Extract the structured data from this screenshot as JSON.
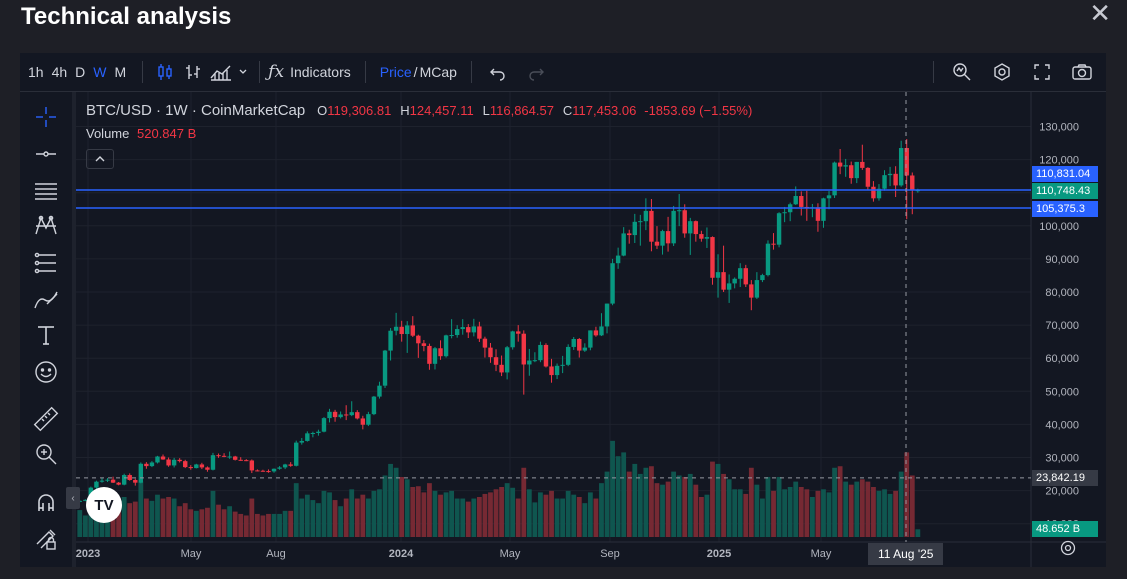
{
  "dialog": {
    "title": "Technical analysis"
  },
  "toolbar": {
    "intervals": [
      "1h",
      "4h",
      "D",
      "W",
      "M"
    ],
    "active_interval": "W",
    "indicators_label": "Indicators",
    "price_label": "Price",
    "mcap_label": "MCap",
    "slash": "/"
  },
  "legend": {
    "symbol": "BTC/USD · 1W · CoinMarketCap",
    "o_label": "O",
    "open": "119,306.81",
    "h_label": "H",
    "high": "124,457.11",
    "l_label": "L",
    "low": "116,864.57",
    "c_label": "C",
    "close": "117,453.06",
    "change": "-1853.69 (−1.55%)",
    "volume_label": "Volume",
    "volume_value": "520.847 B"
  },
  "price_axis": {
    "ticks": [
      "130,000",
      "120,000",
      "110,000",
      "100,000",
      "90,000",
      "80,000",
      "70,000",
      "60,000",
      "50,000",
      "40,000",
      "30,000",
      "20,000",
      "10,000"
    ],
    "tick_values": [
      130000,
      120000,
      110000,
      100000,
      90000,
      80000,
      70000,
      60000,
      50000,
      40000,
      30000,
      20000,
      10000
    ]
  },
  "time_axis": {
    "labels": [
      "2023",
      "May",
      "Aug",
      "2024",
      "May",
      "Sep",
      "2025",
      "May"
    ],
    "bold": [
      true,
      false,
      false,
      true,
      false,
      false,
      true,
      false
    ],
    "crosshair_label": "11 Aug '25"
  },
  "price_tags": {
    "line1": {
      "text": "110,831.04",
      "value": 110831.04,
      "color": "#2962ff"
    },
    "line_last": {
      "text": "110,748.43",
      "value": 110748.43,
      "color": "#089981"
    },
    "line2": {
      "text": "105,375.3",
      "value": 105375.3,
      "color": "#2962ff"
    },
    "crosshair": {
      "text": "23,842.19",
      "value": 23842.19
    },
    "volume": {
      "text": "48.652 B",
      "color": "#089981"
    }
  },
  "colors": {
    "up": "#089981",
    "down": "#f23645",
    "line": "#2962ff",
    "bg": "#131722",
    "grid": "#1e222d"
  },
  "chart_data": {
    "type": "candlestick",
    "interval": "1W",
    "series_name": "BTC/USD",
    "ylim": [
      10000,
      135000
    ],
    "horizontal_lines": [
      110831.04,
      105375.3
    ],
    "crosshair": {
      "date": "11 Aug '25",
      "price": 23842.19
    },
    "candles_ohlcv": [
      [
        16600,
        17100,
        16500,
        16900,
        0.35
      ],
      [
        16900,
        17400,
        16800,
        17200,
        0.28
      ],
      [
        17200,
        21200,
        17100,
        20900,
        0.62
      ],
      [
        20900,
        23000,
        20500,
        22700,
        0.55
      ],
      [
        22700,
        23900,
        22400,
        23000,
        0.48
      ],
      [
        23000,
        23800,
        22600,
        23300,
        0.4
      ],
      [
        23300,
        24200,
        22300,
        22400,
        0.45
      ],
      [
        22400,
        22600,
        21600,
        21800,
        0.38
      ],
      [
        21800,
        25100,
        21600,
        24700,
        0.52
      ],
      [
        24700,
        25200,
        23000,
        23200,
        0.44
      ],
      [
        23200,
        23600,
        21500,
        22400,
        0.46
      ],
      [
        22400,
        28500,
        22200,
        28100,
        0.72
      ],
      [
        28100,
        28600,
        26600,
        27400,
        0.5
      ],
      [
        27400,
        28900,
        27100,
        28500,
        0.47
      ],
      [
        28500,
        30500,
        28200,
        30300,
        0.55
      ],
      [
        30300,
        30900,
        29300,
        29400,
        0.5
      ],
      [
        29400,
        30000,
        27200,
        27600,
        0.52
      ],
      [
        27600,
        29900,
        27000,
        29300,
        0.5
      ],
      [
        29300,
        29800,
        28500,
        28900,
        0.4
      ],
      [
        28900,
        29300,
        26800,
        27100,
        0.44
      ],
      [
        27100,
        27700,
        26300,
        26800,
        0.36
      ],
      [
        26800,
        28100,
        26700,
        27900,
        0.34
      ],
      [
        27900,
        28400,
        26500,
        27000,
        0.36
      ],
      [
        27000,
        27300,
        25700,
        26300,
        0.38
      ],
      [
        26300,
        31400,
        26100,
        30700,
        0.6
      ],
      [
        30700,
        31200,
        29900,
        30500,
        0.42
      ],
      [
        30500,
        31300,
        30100,
        30200,
        0.36
      ],
      [
        30200,
        31800,
        29600,
        30300,
        0.4
      ],
      [
        30300,
        30500,
        29100,
        29300,
        0.33
      ],
      [
        29300,
        30100,
        29000,
        29200,
        0.3
      ],
      [
        29200,
        29500,
        28900,
        29100,
        0.28
      ],
      [
        29100,
        29400,
        25300,
        26100,
        0.5
      ],
      [
        26100,
        26400,
        25800,
        26000,
        0.3
      ],
      [
        26000,
        26300,
        25700,
        25900,
        0.28
      ],
      [
        25900,
        26400,
        25400,
        25800,
        0.3
      ],
      [
        25800,
        26700,
        25400,
        26600,
        0.3
      ],
      [
        26600,
        27400,
        26300,
        27000,
        0.3
      ],
      [
        27000,
        28100,
        26500,
        27900,
        0.34
      ],
      [
        27900,
        28600,
        27200,
        27500,
        0.34
      ],
      [
        27500,
        35100,
        27300,
        34500,
        0.7
      ],
      [
        34500,
        35900,
        33900,
        35000,
        0.5
      ],
      [
        35000,
        37900,
        34800,
        37300,
        0.55
      ],
      [
        37300,
        37800,
        36100,
        37400,
        0.48
      ],
      [
        37400,
        38400,
        36600,
        37800,
        0.44
      ],
      [
        37800,
        42200,
        37600,
        41900,
        0.6
      ],
      [
        41900,
        44700,
        40600,
        43800,
        0.58
      ],
      [
        43800,
        44400,
        40800,
        42200,
        0.48
      ],
      [
        42200,
        43900,
        41800,
        43000,
        0.4
      ],
      [
        43000,
        45800,
        41300,
        42800,
        0.5
      ],
      [
        42800,
        47000,
        42500,
        43700,
        0.62
      ],
      [
        43700,
        44300,
        41500,
        41800,
        0.5
      ],
      [
        41800,
        42600,
        38500,
        39900,
        0.55
      ],
      [
        39900,
        43800,
        39500,
        43100,
        0.5
      ],
      [
        43100,
        48600,
        42800,
        48400,
        0.6
      ],
      [
        48400,
        52900,
        47800,
        51700,
        0.62
      ],
      [
        51700,
        62500,
        51000,
        62300,
        0.8
      ],
      [
        62300,
        69100,
        59300,
        68300,
        0.95
      ],
      [
        68300,
        73700,
        66900,
        69500,
        0.9
      ],
      [
        69500,
        71300,
        65000,
        67300,
        0.78
      ],
      [
        67300,
        71200,
        61600,
        69900,
        0.75
      ],
      [
        69900,
        72700,
        66400,
        66800,
        0.65
      ],
      [
        66800,
        67100,
        60100,
        64500,
        0.66
      ],
      [
        64500,
        65500,
        62100,
        63700,
        0.58
      ],
      [
        63700,
        64400,
        56500,
        58300,
        0.7
      ],
      [
        58300,
        63400,
        56600,
        63000,
        0.6
      ],
      [
        63000,
        65400,
        59500,
        60600,
        0.55
      ],
      [
        60600,
        67100,
        60200,
        66900,
        0.58
      ],
      [
        66900,
        71800,
        66000,
        67000,
        0.6
      ],
      [
        67000,
        70000,
        66200,
        68800,
        0.5
      ],
      [
        68800,
        71800,
        67100,
        69400,
        0.5
      ],
      [
        69400,
        70300,
        66100,
        67800,
        0.46
      ],
      [
        67800,
        71900,
        66600,
        69600,
        0.5
      ],
      [
        69600,
        71000,
        64900,
        65900,
        0.52
      ],
      [
        65900,
        66500,
        60200,
        63200,
        0.56
      ],
      [
        63200,
        64600,
        58600,
        60300,
        0.58
      ],
      [
        60300,
        62700,
        56100,
        58000,
        0.62
      ],
      [
        58000,
        60800,
        54600,
        55700,
        0.65
      ],
      [
        55700,
        63700,
        53600,
        63300,
        0.7
      ],
      [
        63300,
        68300,
        62600,
        68100,
        0.64
      ],
      [
        68100,
        70000,
        65000,
        67400,
        0.5
      ],
      [
        67400,
        68400,
        49000,
        58100,
        0.9
      ],
      [
        58100,
        62800,
        54700,
        59300,
        0.62
      ],
      [
        59300,
        61800,
        58800,
        59400,
        0.45
      ],
      [
        59400,
        65000,
        58800,
        64000,
        0.58
      ],
      [
        64000,
        64500,
        57200,
        57500,
        0.55
      ],
      [
        57500,
        59800,
        52600,
        54900,
        0.6
      ],
      [
        54900,
        58400,
        53700,
        57700,
        0.5
      ],
      [
        57700,
        60700,
        55500,
        58000,
        0.5
      ],
      [
        58000,
        64200,
        57600,
        63400,
        0.6
      ],
      [
        63400,
        66400,
        62500,
        65800,
        0.55
      ],
      [
        65800,
        66100,
        60200,
        62300,
        0.52
      ],
      [
        62300,
        64500,
        61900,
        63200,
        0.44
      ],
      [
        63200,
        68400,
        62400,
        68400,
        0.58
      ],
      [
        68400,
        69500,
        66500,
        66900,
        0.5
      ],
      [
        66900,
        73600,
        66700,
        69600,
        0.7
      ],
      [
        69600,
        76500,
        67500,
        76500,
        0.85
      ],
      [
        76500,
        90000,
        76000,
        88700,
        1.25
      ],
      [
        88700,
        93400,
        87000,
        91000,
        1.05
      ],
      [
        91000,
        99600,
        90800,
        97700,
        1.1
      ],
      [
        97700,
        98800,
        94600,
        97200,
        0.85
      ],
      [
        97200,
        103600,
        94800,
        101200,
        0.95
      ],
      [
        101200,
        103300,
        94000,
        101400,
        0.82
      ],
      [
        101400,
        108300,
        98700,
        104500,
        0.9
      ],
      [
        104500,
        108100,
        92300,
        95200,
        0.92
      ],
      [
        95200,
        99900,
        93000,
        94000,
        0.7
      ],
      [
        94000,
        98800,
        91300,
        98400,
        0.68
      ],
      [
        98400,
        102700,
        92200,
        94700,
        0.72
      ],
      [
        94700,
        106000,
        93900,
        104500,
        0.85
      ],
      [
        104500,
        109600,
        99900,
        104700,
        0.8
      ],
      [
        104700,
        106500,
        96400,
        97700,
        0.78
      ],
      [
        97700,
        102400,
        91200,
        101400,
        0.82
      ],
      [
        101400,
        101600,
        95200,
        97500,
        0.68
      ],
      [
        97500,
        98500,
        95200,
        96100,
        0.52
      ],
      [
        96100,
        99500,
        93300,
        96600,
        0.55
      ],
      [
        96600,
        96800,
        82200,
        84300,
        0.98
      ],
      [
        84300,
        91400,
        78300,
        86000,
        0.95
      ],
      [
        86000,
        94000,
        80000,
        80700,
        0.82
      ],
      [
        80700,
        85300,
        76700,
        82600,
        0.75
      ],
      [
        82600,
        84400,
        81100,
        84000,
        0.62
      ],
      [
        84000,
        88700,
        81500,
        87200,
        0.62
      ],
      [
        87200,
        88200,
        81500,
        82300,
        0.56
      ],
      [
        82300,
        83600,
        74500,
        78300,
        0.9
      ],
      [
        78300,
        86000,
        77900,
        83600,
        0.68
      ],
      [
        83600,
        85500,
        83000,
        85100,
        0.5
      ],
      [
        85100,
        95600,
        84700,
        94600,
        0.78
      ],
      [
        94600,
        97800,
        92800,
        94300,
        0.6
      ],
      [
        94300,
        104100,
        93500,
        103800,
        0.78
      ],
      [
        103800,
        105700,
        101100,
        104100,
        0.62
      ],
      [
        104100,
        107000,
        101400,
        106500,
        0.65
      ],
      [
        106500,
        111900,
        106300,
        109000,
        0.72
      ],
      [
        109000,
        110400,
        103100,
        105700,
        0.65
      ],
      [
        105700,
        110600,
        101500,
        105500,
        0.62
      ],
      [
        105500,
        106600,
        102600,
        105600,
        0.52
      ],
      [
        105600,
        106800,
        98200,
        101500,
        0.6
      ],
      [
        101500,
        108500,
        99400,
        108300,
        0.62
      ],
      [
        108300,
        110500,
        105000,
        109200,
        0.58
      ],
      [
        109200,
        119400,
        108400,
        119100,
        0.9
      ],
      [
        119100,
        123200,
        115600,
        117900,
        0.92
      ],
      [
        117900,
        120200,
        114800,
        118300,
        0.72
      ],
      [
        118300,
        119400,
        112700,
        114400,
        0.68
      ],
      [
        114400,
        119300,
        112900,
        119300,
        0.72
      ],
      [
        119300,
        124500,
        116900,
        117500,
        0.75
      ],
      [
        117500,
        117700,
        110900,
        111800,
        0.72
      ],
      [
        111800,
        113500,
        107300,
        108300,
        0.65
      ],
      [
        108300,
        112600,
        107600,
        111200,
        0.6
      ],
      [
        111200,
        116800,
        110600,
        115300,
        0.62
      ],
      [
        115300,
        117800,
        112000,
        115700,
        0.56
      ],
      [
        115700,
        118000,
        108700,
        112200,
        0.6
      ],
      [
        112200,
        125700,
        111800,
        123500,
        0.85
      ],
      [
        123500,
        126200,
        102000,
        115200,
        1.1
      ],
      [
        115200,
        116100,
        103500,
        110748.43,
        0.8
      ],
      [
        110748.43,
        111200,
        110000,
        110748.43,
        0.1
      ]
    ]
  }
}
